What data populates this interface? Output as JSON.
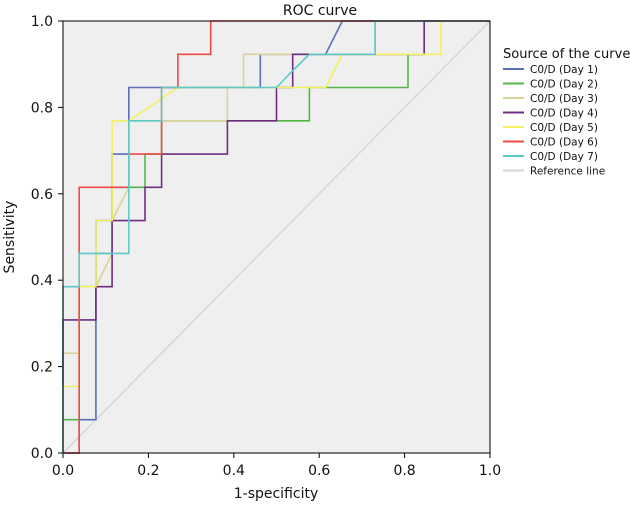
{
  "chart_data": {
    "type": "line",
    "title": "ROC curve",
    "xlabel": "1-specificity",
    "ylabel": "Sensitivity",
    "xlim": [
      0.0,
      1.0
    ],
    "ylim": [
      0.0,
      1.0
    ],
    "xticks": [
      "0.0",
      "0.2",
      "0.4",
      "0.6",
      "0.8",
      "1.0"
    ],
    "yticks": [
      "0.0",
      "0.2",
      "0.4",
      "0.6",
      "0.8",
      "1.0"
    ],
    "background": "#efefef",
    "legend": {
      "title": "Source of the curve",
      "position": "right"
    },
    "series": [
      {
        "name": "C0/D (Day 1)",
        "color": "#5a6fb8",
        "points": [
          [
            0,
            0
          ],
          [
            0.038,
            0
          ],
          [
            0.038,
            0.077
          ],
          [
            0.077,
            0.077
          ],
          [
            0.077,
            0.385
          ],
          [
            0.077,
            0.538
          ],
          [
            0.115,
            0.538
          ],
          [
            0.115,
            0.692
          ],
          [
            0.154,
            0.692
          ],
          [
            0.154,
            0.846
          ],
          [
            0.462,
            0.846
          ],
          [
            0.462,
            0.923
          ],
          [
            0.615,
            0.923
          ],
          [
            0.654,
            1.0
          ],
          [
            1.0,
            1.0
          ]
        ]
      },
      {
        "name": "C0/D (Day 2)",
        "color": "#55b648",
        "points": [
          [
            0,
            0
          ],
          [
            0,
            0.077
          ],
          [
            0.038,
            0.077
          ],
          [
            0.038,
            0.385
          ],
          [
            0.077,
            0.385
          ],
          [
            0.077,
            0.462
          ],
          [
            0.115,
            0.462
          ],
          [
            0.115,
            0.615
          ],
          [
            0.192,
            0.615
          ],
          [
            0.192,
            0.692
          ],
          [
            0.231,
            0.692
          ],
          [
            0.231,
            0.769
          ],
          [
            0.577,
            0.769
          ],
          [
            0.577,
            0.846
          ],
          [
            0.808,
            0.846
          ],
          [
            0.808,
            0.923
          ],
          [
            0.846,
            0.923
          ],
          [
            0.846,
            1.0
          ],
          [
            1.0,
            1.0
          ]
        ]
      },
      {
        "name": "C0/D (Day 3)",
        "color": "#d8d39a",
        "points": [
          [
            0,
            0
          ],
          [
            0,
            0.231
          ],
          [
            0.038,
            0.231
          ],
          [
            0.038,
            0.385
          ],
          [
            0.077,
            0.385
          ],
          [
            0.115,
            0.462
          ],
          [
            0.115,
            0.538
          ],
          [
            0.154,
            0.615
          ],
          [
            0.154,
            0.769
          ],
          [
            0.385,
            0.769
          ],
          [
            0.385,
            0.846
          ],
          [
            0.423,
            0.846
          ],
          [
            0.423,
            0.923
          ],
          [
            0.731,
            0.923
          ],
          [
            0.731,
            1.0
          ],
          [
            1.0,
            1.0
          ]
        ]
      },
      {
        "name": "C0/D (Day 4)",
        "color": "#6f2e82",
        "points": [
          [
            0,
            0
          ],
          [
            0,
            0.308
          ],
          [
            0.077,
            0.308
          ],
          [
            0.077,
            0.385
          ],
          [
            0.115,
            0.385
          ],
          [
            0.115,
            0.538
          ],
          [
            0.192,
            0.538
          ],
          [
            0.192,
            0.615
          ],
          [
            0.231,
            0.615
          ],
          [
            0.231,
            0.692
          ],
          [
            0.385,
            0.692
          ],
          [
            0.385,
            0.769
          ],
          [
            0.5,
            0.769
          ],
          [
            0.5,
            0.846
          ],
          [
            0.538,
            0.846
          ],
          [
            0.538,
            0.923
          ],
          [
            0.846,
            0.923
          ],
          [
            0.846,
            1.0
          ],
          [
            1.0,
            1.0
          ]
        ]
      },
      {
        "name": "C0/D (Day 5)",
        "color": "#f4f060",
        "points": [
          [
            0,
            0
          ],
          [
            0,
            0.154
          ],
          [
            0.038,
            0.154
          ],
          [
            0.038,
            0.385
          ],
          [
            0.077,
            0.385
          ],
          [
            0.077,
            0.538
          ],
          [
            0.115,
            0.538
          ],
          [
            0.115,
            0.769
          ],
          [
            0.154,
            0.769
          ],
          [
            0.269,
            0.846
          ],
          [
            0.538,
            0.846
          ],
          [
            0.615,
            0.846
          ],
          [
            0.654,
            0.923
          ],
          [
            0.885,
            0.923
          ],
          [
            0.885,
            1.0
          ],
          [
            1.0,
            1.0
          ]
        ]
      },
      {
        "name": "C0/D (Day 6)",
        "color": "#f04a48",
        "points": [
          [
            0,
            0
          ],
          [
            0.038,
            0
          ],
          [
            0.038,
            0.462
          ],
          [
            0.038,
            0.615
          ],
          [
            0.154,
            0.615
          ],
          [
            0.154,
            0.692
          ],
          [
            0.231,
            0.692
          ],
          [
            0.231,
            0.846
          ],
          [
            0.269,
            0.846
          ],
          [
            0.269,
            0.923
          ],
          [
            0.346,
            0.923
          ],
          [
            0.346,
            1.0
          ],
          [
            1.0,
            1.0
          ]
        ]
      },
      {
        "name": "C0/D (Day 7)",
        "color": "#5ccbc8",
        "points": [
          [
            0,
            0
          ],
          [
            0,
            0.385
          ],
          [
            0.038,
            0.385
          ],
          [
            0.038,
            0.462
          ],
          [
            0.154,
            0.462
          ],
          [
            0.154,
            0.769
          ],
          [
            0.231,
            0.769
          ],
          [
            0.231,
            0.846
          ],
          [
            0.5,
            0.846
          ],
          [
            0.538,
            0.885
          ],
          [
            0.577,
            0.923
          ],
          [
            0.731,
            0.923
          ],
          [
            0.731,
            1.0
          ],
          [
            1.0,
            1.0
          ]
        ]
      },
      {
        "name": "Reference line",
        "color": "#d4d4d4",
        "points": [
          [
            0,
            0
          ],
          [
            1,
            1
          ]
        ]
      }
    ]
  }
}
